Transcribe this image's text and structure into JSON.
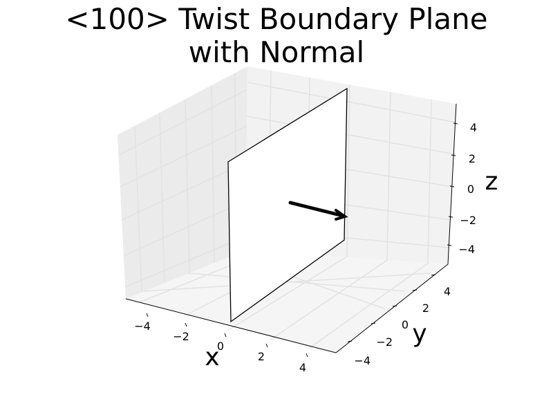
{
  "title_line1": "<100> Twist Boundary Plane",
  "title_line2": "with Normal",
  "axes": {
    "xlabel": "x",
    "ylabel": "y",
    "zlabel": "z",
    "x_ticks": [
      "−4",
      "−2",
      "0",
      "2",
      "4"
    ],
    "y_ticks": [
      "−4",
      "−2",
      "0",
      "2",
      "4"
    ],
    "z_ticks": [
      "4",
      "2",
      "0",
      "−2",
      "−4"
    ],
    "range": [
      -5,
      5
    ]
  },
  "plane": {
    "x": 0,
    "extent_y": [
      -5,
      5
    ],
    "extent_z": [
      -5,
      5
    ],
    "fill": "#ffffff",
    "edge": "#000000"
  },
  "normal_vector": {
    "origin": [
      0,
      0,
      0
    ],
    "direction": [
      1,
      0,
      0
    ],
    "color": "#000000"
  },
  "colors": {
    "pane_back": "#f2f2f2",
    "pane_side": "#ebebeb",
    "pane_floor": "#f5f5f5",
    "grid": "#e2e2e2"
  }
}
